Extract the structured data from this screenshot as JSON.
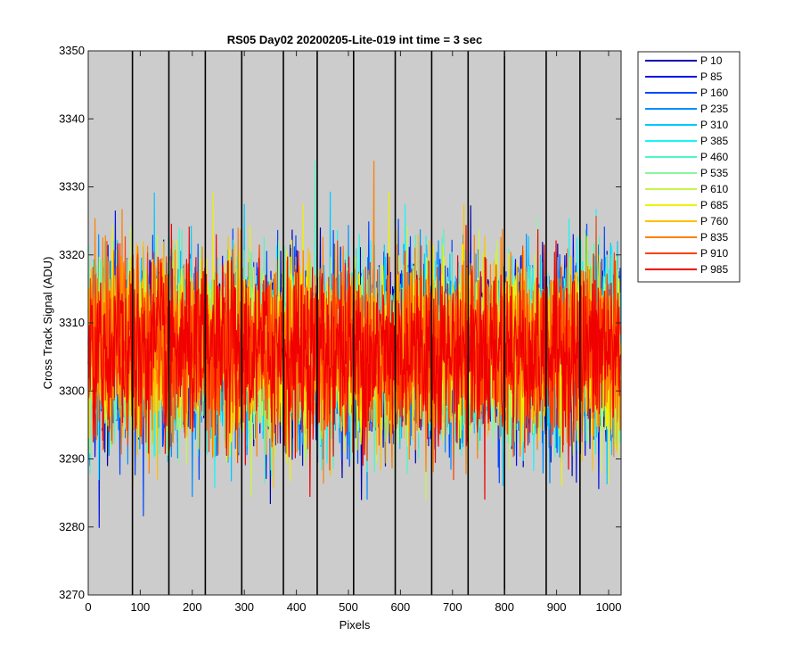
{
  "chart_data": {
    "type": "line",
    "title": "RS05 Day02 20200205-Lite-019 int time = 3 sec",
    "xlabel": "Pixels",
    "ylabel": "Cross Track Signal (ADU)",
    "xlim": [
      0,
      1024
    ],
    "ylim": [
      3270,
      3350
    ],
    "xticks": [
      0,
      100,
      200,
      300,
      400,
      500,
      600,
      700,
      800,
      900,
      1000
    ],
    "yticks": [
      3270,
      3280,
      3290,
      3300,
      3310,
      3320,
      3330,
      3340,
      3350
    ],
    "background": "#cccccc",
    "grid": false,
    "legend_position": "outside-top-right",
    "n_points": 1024,
    "noise": {
      "mean": 3306,
      "std": 6.5,
      "min": 3274,
      "max": 3341
    },
    "segment_boundaries": [
      85,
      155,
      225,
      295,
      375,
      440,
      510,
      590,
      660,
      730,
      800,
      880,
      945
    ],
    "series": [
      {
        "name": "P 10",
        "color": "#0000ad"
      },
      {
        "name": "P 85",
        "color": "#0010e8"
      },
      {
        "name": "P 160",
        "color": "#0046ff"
      },
      {
        "name": "P 235",
        "color": "#0090ff"
      },
      {
        "name": "P 310",
        "color": "#00c8ff"
      },
      {
        "name": "P 385",
        "color": "#1af5f5"
      },
      {
        "name": "P 460",
        "color": "#50f5c8"
      },
      {
        "name": "P 535",
        "color": "#8cf5a0"
      },
      {
        "name": "P 610",
        "color": "#c8f548"
      },
      {
        "name": "P 685",
        "color": "#f0f000"
      },
      {
        "name": "P 760",
        "color": "#ffc000"
      },
      {
        "name": "P 835",
        "color": "#ff8000"
      },
      {
        "name": "P 910",
        "color": "#ff4000"
      },
      {
        "name": "P 985",
        "color": "#f00000"
      }
    ]
  }
}
